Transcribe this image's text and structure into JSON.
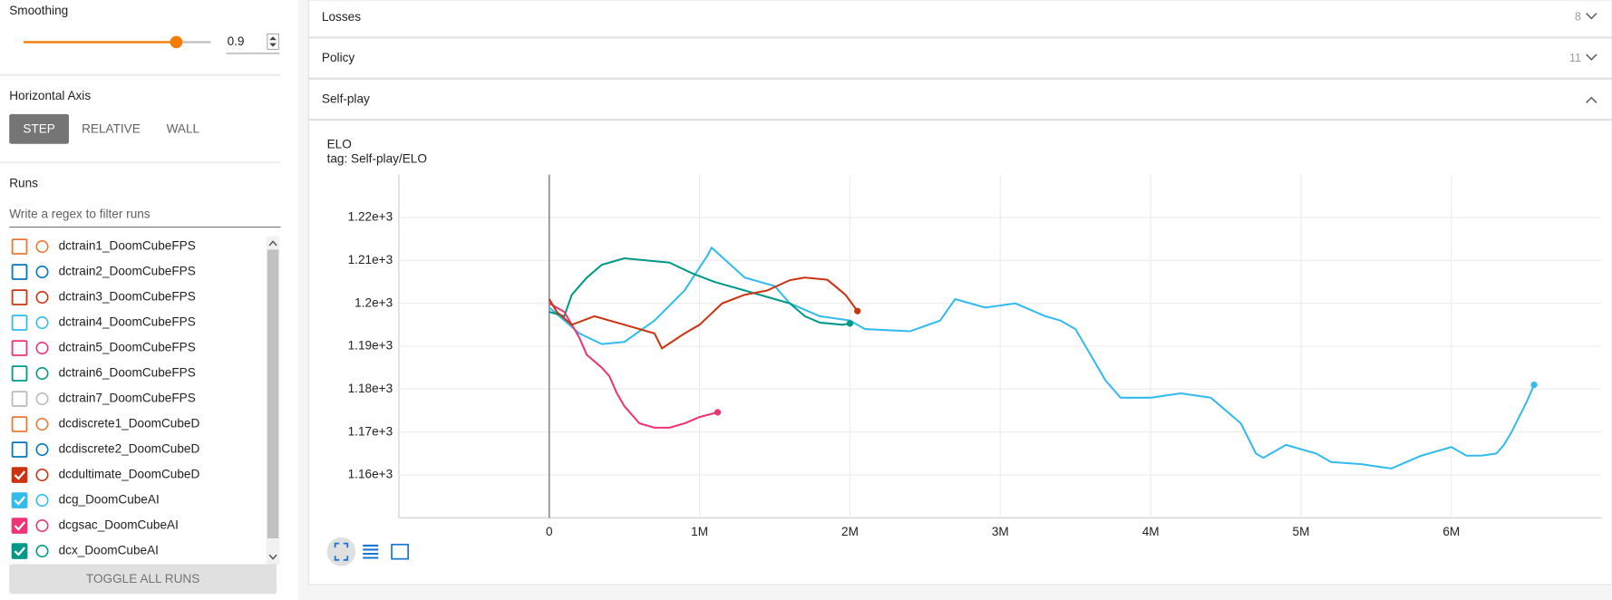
{
  "sidebar": {
    "smoothing": {
      "label": "Smoothing",
      "value": 0.9
    },
    "horizontal_axis": {
      "label": "Horizontal Axis",
      "options": [
        "STEP",
        "RELATIVE",
        "WALL"
      ],
      "selected_index": 0
    },
    "runs": {
      "label": "Runs",
      "filter_placeholder": "Write a regex to filter runs",
      "items": [
        {
          "name": "dctrain1_DoomCubeFPS",
          "color": "#ee7733",
          "checked": false
        },
        {
          "name": "dctrain2_DoomCubeFPS",
          "color": "#0077bb",
          "checked": false
        },
        {
          "name": "dctrain3_DoomCubeFPS",
          "color": "#cc3311",
          "checked": false
        },
        {
          "name": "dctrain4_DoomCubeFPS",
          "color": "#33bbee",
          "checked": false
        },
        {
          "name": "dctrain5_DoomCubeFPS",
          "color": "#ee3377",
          "checked": false
        },
        {
          "name": "dctrain6_DoomCubeFPS",
          "color": "#009988",
          "checked": false
        },
        {
          "name": "dctrain7_DoomCubeFPS",
          "color": "#bbbbbb",
          "checked": false
        },
        {
          "name": "dcdiscrete1_DoomCubeD",
          "color": "#ee7733",
          "checked": false
        },
        {
          "name": "dcdiscrete2_DoomCubeD",
          "color": "#0077bb",
          "checked": false
        },
        {
          "name": "dcdultimate_DoomCubeD",
          "color": "#cc3311",
          "checked": true
        },
        {
          "name": "dcg_DoomCubeAI",
          "color": "#33bbee",
          "checked": true
        },
        {
          "name": "dcgsac_DoomCubeAI",
          "color": "#ee3377",
          "checked": true
        },
        {
          "name": "dcx_DoomCubeAI",
          "color": "#009988",
          "checked": true
        }
      ],
      "toggle": "TOGGLE ALL RUNS"
    }
  },
  "panels": [
    {
      "title": "Losses",
      "count": 8
    },
    {
      "title": "Policy",
      "count": 11
    },
    {
      "title": "Self-play"
    }
  ],
  "chart_data": {
    "type": "line",
    "title": "ELO",
    "subtitle": "tag: Self-play/ELO",
    "xlim": [
      -1000000,
      7000000
    ],
    "ylim": [
      1150,
      1230
    ],
    "xticks": [
      0,
      {
        "value": 1000000,
        "label": "1M"
      },
      {
        "value": 2000000,
        "label": "2M"
      },
      {
        "value": 3000000,
        "label": "3M"
      },
      {
        "value": 4000000,
        "label": "4M"
      },
      {
        "value": 5000000,
        "label": "5M"
      },
      {
        "value": 6000000,
        "label": "6M"
      }
    ],
    "yticks": [
      {
        "value": 1160,
        "label": "1.16e+3"
      },
      {
        "value": 1170,
        "label": "1.17e+3"
      },
      {
        "value": 1180,
        "label": "1.18e+3"
      },
      {
        "value": 1190,
        "label": "1.19e+3"
      },
      {
        "value": 1200,
        "label": "1.2e+3"
      },
      {
        "value": 1210,
        "label": "1.21e+3"
      },
      {
        "value": 1220,
        "label": "1.22e+3"
      }
    ],
    "grid": true,
    "series": [
      {
        "color": "#33bbee",
        "x": [
          0,
          200000,
          350000,
          500000,
          700000,
          900000,
          1050000,
          1080000,
          1300000,
          1500000,
          1600000,
          1800000,
          2000000,
          2100000,
          2400000,
          2600000,
          2700000,
          2900000,
          3100000,
          3300000,
          3400000,
          3500000,
          3600000,
          3700000,
          3800000,
          4000000,
          4200000,
          4400000,
          4600000,
          4700000,
          4750000,
          4900000,
          5100000,
          5200000,
          5400000,
          5600000,
          5800000,
          6000000,
          6100000,
          6200000,
          6300000,
          6350000,
          6400000,
          6500000,
          6550000
        ],
        "values": [
          1199,
          1193,
          1190.5,
          1191,
          1196,
          1203,
          1211,
          1213,
          1206,
          1204,
          1200,
          1197,
          1196,
          1194,
          1193.5,
          1196,
          1201,
          1199,
          1200,
          1197,
          1196,
          1194,
          1188,
          1182,
          1178,
          1178,
          1179,
          1178,
          1172,
          1165,
          1164,
          1167,
          1165,
          1163,
          1162.5,
          1161.5,
          1164.5,
          1166.5,
          1164.5,
          1164.5,
          1165,
          1167,
          1170,
          1177,
          1181
        ]
      },
      {
        "color": "#009988",
        "x": [
          0,
          100000,
          150000,
          250000,
          350000,
          500000,
          650000,
          800000,
          950000,
          1100000,
          1300000,
          1500000,
          1600000,
          1700000,
          1800000,
          1950000,
          2000000
        ],
        "values": [
          1198,
          1197,
          1202,
          1206,
          1209,
          1210.5,
          1210,
          1209.5,
          1207,
          1205,
          1203,
          1201,
          1200,
          1197,
          1195.5,
          1195,
          1195.3
        ]
      },
      {
        "color": "#ee3377",
        "x": [
          0,
          50000,
          100000,
          200000,
          250000,
          350000,
          400000,
          450000,
          500000,
          600000,
          700000,
          800000,
          900000,
          1000000,
          1120000
        ],
        "values": [
          1200,
          1199,
          1198,
          1192,
          1188,
          1185,
          1183,
          1179,
          1176,
          1172,
          1171,
          1171,
          1172,
          1173.5,
          1174.6
        ]
      },
      {
        "color": "#cc3311",
        "x": [
          0,
          50000,
          150000,
          300000,
          500000,
          700000,
          750000,
          900000,
          1000000,
          1150000,
          1300000,
          1450000,
          1600000,
          1700000,
          1850000,
          1970000,
          2050000
        ],
        "values": [
          1201,
          1198,
          1195,
          1197,
          1195,
          1193,
          1189.5,
          1193,
          1195,
          1200,
          1202,
          1203,
          1205.4,
          1206,
          1205.5,
          1202,
          1198.2
        ]
      }
    ]
  }
}
